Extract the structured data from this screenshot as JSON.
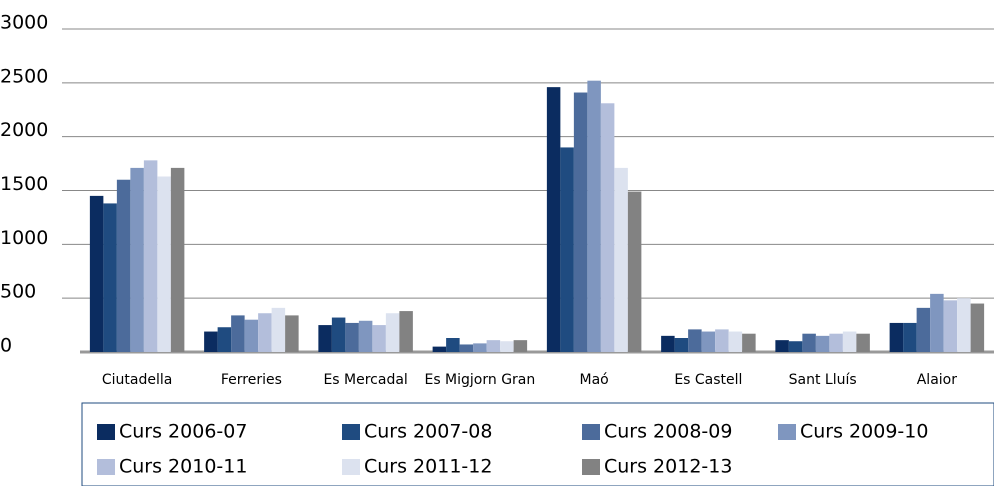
{
  "chart_data": {
    "type": "bar",
    "categories": [
      "Ciutadella",
      "Ferreries",
      "Es Mercadal",
      "Es Migjorn Gran",
      "Maó",
      "Es Castell",
      "Sant Lluís",
      "Alaior"
    ],
    "series": [
      {
        "name": "Curs 2006-07",
        "color": "#0b2c60",
        "values": [
          1450,
          190,
          250,
          50,
          2460,
          150,
          110,
          270
        ]
      },
      {
        "name": "Curs 2007-08",
        "color": "#1f4b80",
        "values": [
          1380,
          230,
          320,
          130,
          1900,
          130,
          100,
          270
        ]
      },
      {
        "name": "Curs 2008-09",
        "color": "#4c6b9b",
        "values": [
          1600,
          340,
          270,
          70,
          2410,
          210,
          170,
          410
        ]
      },
      {
        "name": "Curs 2009-10",
        "color": "#7f96bf",
        "values": [
          1710,
          300,
          290,
          80,
          2520,
          190,
          150,
          540
        ]
      },
      {
        "name": "Curs 2010-11",
        "color": "#b3bedb",
        "values": [
          1780,
          360,
          250,
          110,
          2310,
          210,
          170,
          480
        ]
      },
      {
        "name": "Curs 2011-12",
        "color": "#dce2ef",
        "values": [
          1630,
          410,
          360,
          100,
          1710,
          190,
          190,
          500
        ]
      },
      {
        "name": "Curs 2012-13",
        "color": "#828282",
        "values": [
          1710,
          340,
          380,
          110,
          1490,
          170,
          170,
          450
        ]
      }
    ],
    "ylim": [
      0,
      3000
    ],
    "yticks": [
      0,
      500,
      1000,
      1500,
      2000,
      2500,
      3000
    ],
    "grid": true
  }
}
